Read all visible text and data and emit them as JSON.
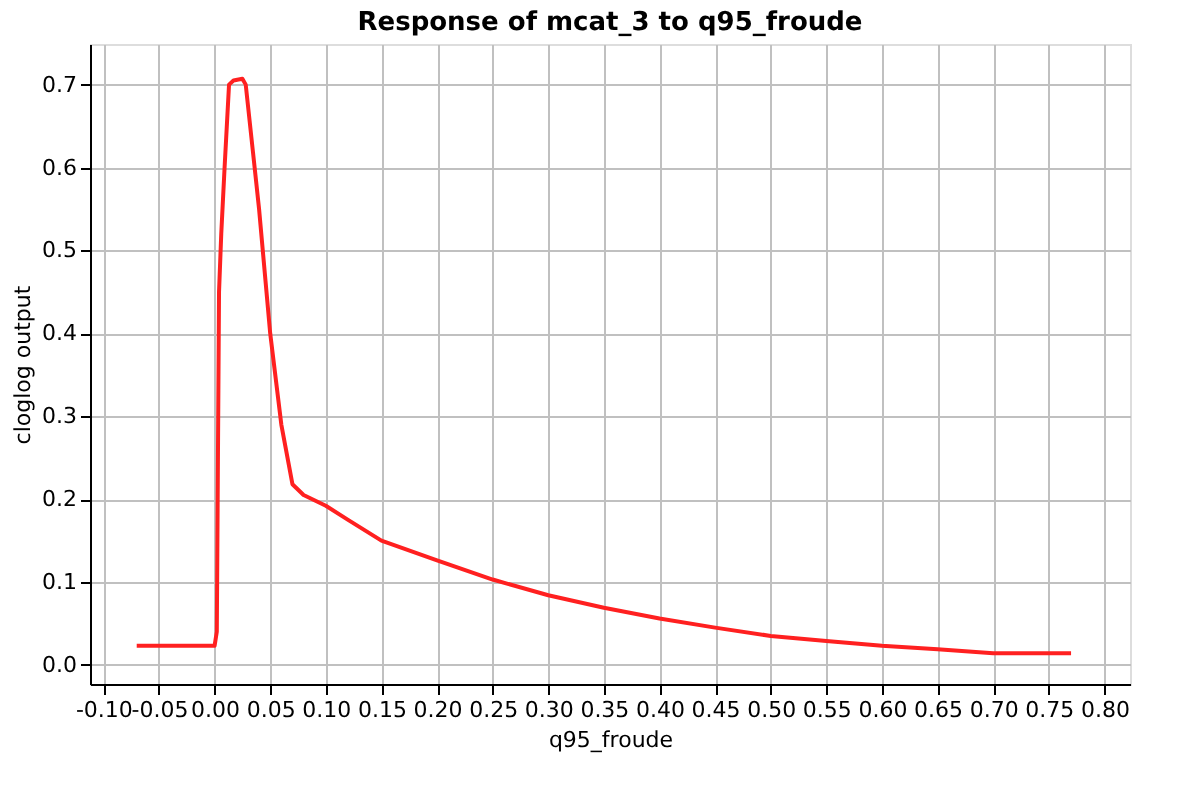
{
  "chart_data": {
    "type": "line",
    "title": "Response of mcat_3 to q95_froude",
    "xlabel": "q95_froude",
    "ylabel": "cloglog output",
    "x": [
      -0.07,
      0.0,
      0.002,
      0.004,
      0.006,
      0.009,
      0.013,
      0.017,
      0.025,
      0.028,
      0.04,
      0.05,
      0.06,
      0.07,
      0.08,
      0.1,
      0.12,
      0.15,
      0.2,
      0.25,
      0.3,
      0.35,
      0.4,
      0.45,
      0.5,
      0.55,
      0.6,
      0.65,
      0.7,
      0.77
    ],
    "series": [
      {
        "color": "#ff2020",
        "values": [
          0.023,
          0.023,
          0.04,
          0.45,
          0.52,
          0.6,
          0.7,
          0.705,
          0.707,
          0.7,
          0.55,
          0.4,
          0.29,
          0.218,
          0.205,
          0.192,
          0.175,
          0.15,
          0.126,
          0.103,
          0.084,
          0.069,
          0.056,
          0.045,
          0.035,
          0.029,
          0.023,
          0.019,
          0.014,
          0.014
        ]
      }
    ],
    "xlim": [
      -0.112,
      0.823
    ],
    "ylim": [
      -0.023,
      0.749
    ],
    "xticks": [
      {
        "value": -0.1,
        "label": "-0.10"
      },
      {
        "value": -0.05,
        "label": "-0.05"
      },
      {
        "value": 0.0,
        "label": "0.00"
      },
      {
        "value": 0.05,
        "label": "0.05"
      },
      {
        "value": 0.1,
        "label": "0.10"
      },
      {
        "value": 0.15,
        "label": "0.15"
      },
      {
        "value": 0.2,
        "label": "0.20"
      },
      {
        "value": 0.25,
        "label": "0.25"
      },
      {
        "value": 0.3,
        "label": "0.30"
      },
      {
        "value": 0.35,
        "label": "0.35"
      },
      {
        "value": 0.4,
        "label": "0.40"
      },
      {
        "value": 0.45,
        "label": "0.45"
      },
      {
        "value": 0.5,
        "label": "0.50"
      },
      {
        "value": 0.55,
        "label": "0.55"
      },
      {
        "value": 0.6,
        "label": "0.60"
      },
      {
        "value": 0.65,
        "label": "0.65"
      },
      {
        "value": 0.7,
        "label": "0.70"
      },
      {
        "value": 0.75,
        "label": "0.75"
      },
      {
        "value": 0.8,
        "label": "0.80"
      }
    ],
    "yticks": [
      {
        "value": 0,
        "label": "0.0"
      },
      0.1,
      0.2,
      0.3,
      0.4,
      0.5,
      0.6,
      0.7
    ],
    "grid": true,
    "line_style": "solid",
    "marker": "none"
  }
}
